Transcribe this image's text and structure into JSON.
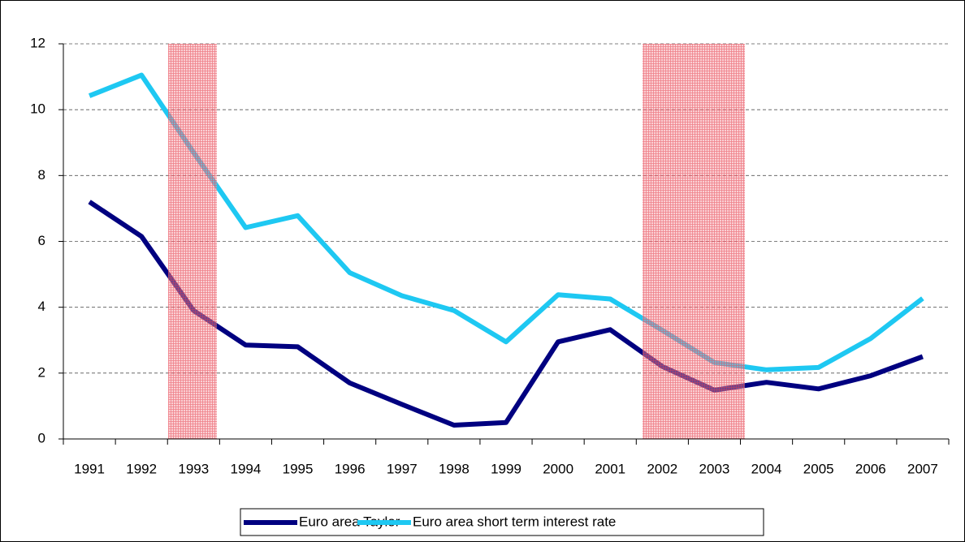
{
  "chart_data": {
    "type": "line",
    "categories": [
      "1991",
      "1992",
      "1993",
      "1994",
      "1995",
      "1996",
      "1997",
      "1998",
      "1999",
      "2000",
      "2001",
      "2002",
      "2003",
      "2004",
      "2005",
      "2006",
      "2007"
    ],
    "series": [
      {
        "name": "Euro area Taylor",
        "color": "#000080",
        "values": [
          7.2,
          6.15,
          3.9,
          2.85,
          2.8,
          1.7,
          1.05,
          0.42,
          0.5,
          2.95,
          3.32,
          2.2,
          1.48,
          1.72,
          1.52,
          1.92,
          2.5
        ]
      },
      {
        "name": "Euro area short term interest rate",
        "color": "#1ec8f2",
        "values": [
          10.42,
          11.05,
          8.7,
          6.42,
          6.78,
          5.05,
          4.35,
          3.9,
          2.95,
          4.38,
          4.25,
          3.3,
          2.32,
          2.1,
          2.17,
          3.05,
          4.27
        ]
      }
    ],
    "ylim": [
      0,
      12
    ],
    "yticks": [
      0,
      2,
      4,
      6,
      8,
      10,
      12
    ],
    "grid": true,
    "legend": "bottom"
  }
}
